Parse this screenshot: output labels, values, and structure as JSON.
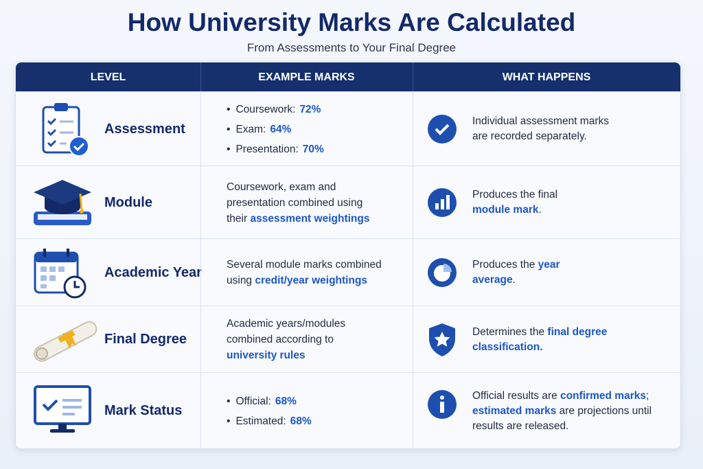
{
  "header": {
    "title": "How University Marks Are Calculated",
    "subtitle": "From Assessments to Your Final Degree"
  },
  "table": {
    "columns": [
      "LEVEL",
      "EXAMPLE MARKS",
      "WHAT HAPPENS"
    ],
    "rows": [
      {
        "level": "Assessment",
        "example": [
          {
            "label": "Coursework:",
            "value": "72%"
          },
          {
            "label": "Exam:",
            "value": "64%"
          },
          {
            "label": "Presentation:",
            "value": "70%"
          }
        ],
        "outcome": [
          {
            "text": "Individual assessment marks are recorded separately."
          }
        ]
      },
      {
        "level": "Module",
        "example": [
          {
            "text": "Coursework, exam and presentation combined using their "
          },
          {
            "text": "assessment weightings",
            "color": "#1d56c9"
          }
        ],
        "outcome": [
          {
            "text": "Produces the final "
          },
          {
            "text": "module mark",
            "color": "#1d56c9"
          },
          {
            "text": "."
          }
        ]
      },
      {
        "level": "Academic Year",
        "example": [
          {
            "text": "Several module marks combined using "
          },
          {
            "text": "credit/year weightings",
            "color": "#1d56c9"
          }
        ],
        "outcome": [
          {
            "text": "Produces the "
          },
          {
            "text": "year average",
            "color": "#1d56c9"
          },
          {
            "text": "."
          }
        ]
      },
      {
        "level": "Final Degree",
        "example": [
          {
            "text": "Academic years/modules combined according to "
          },
          {
            "text": "university rules",
            "color": "#1d56c9"
          }
        ],
        "outcome": [
          {
            "text": "Determines the "
          },
          {
            "text": "final degree classification.",
            "color": "#1d56c9"
          }
        ]
      },
      {
        "level": "Mark Status",
        "example": [
          {
            "label": "Official:",
            "value": "68%"
          },
          {
            "label": "Estimated:",
            "value": "68%"
          }
        ],
        "outcome": [
          {
            "text": "Official results are "
          },
          {
            "text": "confirmed marks",
            "color": "#1d56c9"
          },
          {
            "text": "; "
          },
          {
            "text": "estimated marks",
            "color": "#1d56c9"
          },
          {
            "text": " are projections until results are released."
          }
        ]
      }
    ]
  }
}
